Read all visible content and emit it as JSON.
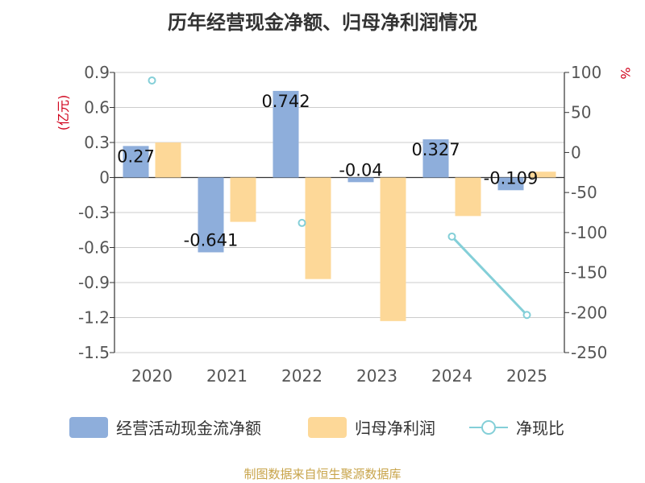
{
  "chart_data": {
    "type": "bar+line",
    "title": "历年经营现金净额、归母净利润情况",
    "categories": [
      "2020",
      "2021",
      "2022",
      "2023",
      "2024",
      "2025"
    ],
    "left_axis": {
      "label": "(亿元)",
      "ylim": [
        -1.5,
        0.9
      ],
      "ticks": [
        0.9,
        0.6,
        0.3,
        0,
        -0.3,
        -0.6,
        -0.9,
        -1.2,
        -1.5
      ],
      "tick_labels": [
        "0.9",
        "0.6",
        "0.3",
        "0",
        "-0.3",
        "-0.6",
        "-0.9",
        "-1.2",
        "-1.5"
      ]
    },
    "right_axis": {
      "label": "%",
      "ylim": [
        -250,
        100
      ],
      "ticks": [
        100,
        50,
        0,
        -50,
        -100,
        -150,
        -200,
        -250
      ],
      "tick_labels": [
        "100",
        "50",
        "0",
        "-50",
        "-100",
        "-150",
        "-200",
        "-250"
      ]
    },
    "series": [
      {
        "name": "经营活动现金流净额",
        "type": "bar",
        "axis": "left",
        "color": "#8eaedb",
        "values": [
          0.27,
          -0.641,
          0.742,
          -0.04,
          0.327,
          -0.109
        ],
        "data_labels": [
          "0.27",
          "-0.641",
          "0.742",
          "-0.04",
          "0.327",
          "-0.109"
        ]
      },
      {
        "name": "归母净利润",
        "type": "bar",
        "axis": "left",
        "color": "#fdd898",
        "values": [
          0.3,
          -0.38,
          -0.87,
          -1.23,
          -0.33,
          0.05
        ]
      },
      {
        "name": "净现比",
        "type": "line",
        "axis": "right",
        "color": "#84cfd8",
        "values": [
          90,
          null,
          -88,
          null,
          -105,
          -203
        ]
      }
    ],
    "grid": true
  },
  "legend": {
    "items": [
      "经营活动现金流净额",
      "归母净利润",
      "净现比"
    ]
  },
  "source": "制图数据来自恒生聚源数据库"
}
